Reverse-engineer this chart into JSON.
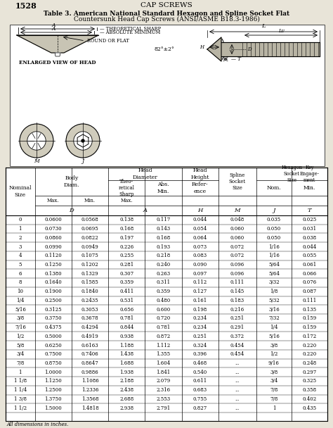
{
  "page_num": "1528",
  "page_header": "CAP SCREWS",
  "title_line1": "Table 3. American National Standard Hexagon and Spline Socket Flat",
  "title_line2": "Countersunk Head Cap Screws (ANSI/ASME B18.3-1986)",
  "rows": [
    [
      "0",
      "0.0600",
      "0.0568",
      "0.138",
      "0.117",
      "0.044",
      "0.048",
      "0.035",
      "0.025"
    ],
    [
      "1",
      "0.0730",
      "0.0695",
      "0.168",
      "0.143",
      "0.054",
      "0.060",
      "0.050",
      "0.031"
    ],
    [
      "2",
      "0.0860",
      "0.0822",
      "0.197",
      "0.168",
      "0.064",
      "0.060",
      "0.050",
      "0.038"
    ],
    [
      "3",
      "0.0990",
      "0.0949",
      "0.226",
      "0.193",
      "0.073",
      "0.072",
      "1/16",
      "0.044"
    ],
    [
      "4",
      "0.1120",
      "0.1075",
      "0.255",
      "0.218",
      "0.083",
      "0.072",
      "1/16",
      "0.055"
    ],
    [
      "5",
      "0.1250",
      "0.1202",
      "0.281",
      "0.240",
      "0.090",
      "0.096",
      "5/64",
      "0.061"
    ],
    [
      "6",
      "0.1380",
      "0.1329",
      "0.307",
      "0.263",
      "0.097",
      "0.096",
      "5/64",
      "0.066"
    ],
    [
      "8",
      "0.1640",
      "0.1585",
      "0.359",
      "0.311",
      "0.112",
      "0.111",
      "3/32",
      "0.076"
    ],
    [
      "10",
      "0.1900",
      "0.1840",
      "0.411",
      "0.359",
      "0.127",
      "0.145",
      "1/8",
      "0.087"
    ],
    [
      "1/4",
      "0.2500",
      "0.2435",
      "0.531",
      "0.480",
      "0.161",
      "0.183",
      "5/32",
      "0.111"
    ],
    [
      "5/16",
      "0.3125",
      "0.3053",
      "0.656",
      "0.600",
      "0.198",
      "0.216",
      "3/16",
      "0.135"
    ],
    [
      "3/8",
      "0.3750",
      "0.3678",
      "0.781",
      "0.720",
      "0.234",
      "0.251",
      "7/32",
      "0.159"
    ],
    [
      "7/16",
      "0.4375",
      "0.4294",
      "0.844",
      "0.781",
      "0.234",
      "0.291",
      "1/4",
      "0.159"
    ],
    [
      "1/2",
      "0.5000",
      "0.4919",
      "0.938",
      "0.872",
      "0.251",
      "0.372",
      "5/16",
      "0.172"
    ],
    [
      "5/8",
      "0.6250",
      "0.6163",
      "1.188",
      "1.112",
      "0.324",
      "0.454",
      "3/8",
      "0.220"
    ],
    [
      "3/4",
      "0.7500",
      "0.7406",
      "1.438",
      "1.355",
      "0.396",
      "0.454",
      "1/2",
      "0.220"
    ],
    [
      "7/8",
      "0.8750",
      "0.8647",
      "1.688",
      "1.604",
      "0.468",
      "...",
      "9/16",
      "0.248"
    ],
    [
      "1",
      "1.0000",
      "0.9886",
      "1.938",
      "1.841",
      "0.540",
      "...",
      "3/8",
      "0.297"
    ],
    [
      "1 1/8",
      "1.1250",
      "1.1086",
      "2.188",
      "2.079",
      "0.611",
      "...",
      "3/4",
      "0.325"
    ],
    [
      "1 1/4",
      "1.2500",
      "1.2336",
      "2.438",
      "2.316",
      "0.683",
      "...",
      "7/8",
      "0.358"
    ],
    [
      "1 3/8",
      "1.3750",
      "1.3568",
      "2.688",
      "2.553",
      "0.755",
      "...",
      "7/8",
      "0.402"
    ],
    [
      "1 1/2",
      "1.5000",
      "1.4818",
      "2.938",
      "2.791",
      "0.827",
      "...",
      "1",
      "0.435"
    ]
  ],
  "footer": "All dimensions in inches.",
  "bg_color": "#e8e4d8"
}
